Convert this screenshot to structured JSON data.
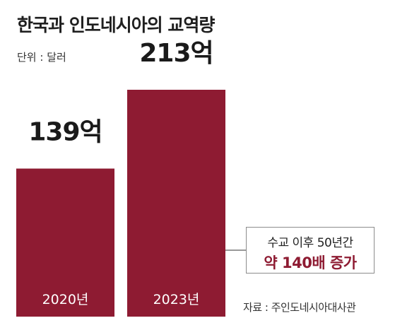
{
  "title": "한국과 인도네시아의 교역량",
  "unit_note": "단위 : 달러",
  "colors": {
    "bar": "#8e1b32",
    "accent_text": "#8e1b32",
    "text": "#1a1a1a"
  },
  "chart_data": {
    "type": "bar",
    "title": "한국과 인도네시아의 교역량",
    "categories": [
      "2020년",
      "2023년"
    ],
    "values": [
      139,
      213
    ],
    "value_labels": [
      "139억",
      "213억"
    ],
    "ylabel": "",
    "xlabel": "",
    "ylim": [
      0,
      213
    ],
    "grid": false
  },
  "callout": {
    "line1": "수교 이후 50년간",
    "line2": "약 140배 증가"
  },
  "source": "자료 : 주인도네시아대사관"
}
